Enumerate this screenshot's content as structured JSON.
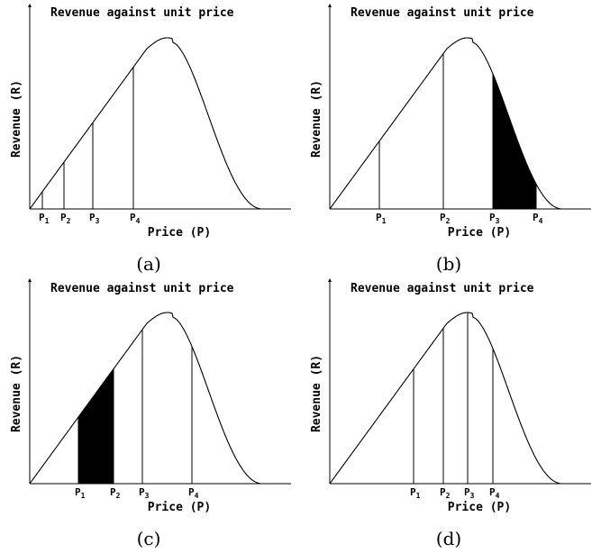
{
  "panels": [
    {
      "title": "Revenue against unit price",
      "xlabel": "Price (P)",
      "ylabel": "Revenue (R)",
      "caption": "(a)",
      "markers": [
        {
          "letter": "P",
          "sub": "1"
        },
        {
          "letter": "P",
          "sub": "2"
        },
        {
          "letter": "P",
          "sub": "3"
        },
        {
          "letter": "P",
          "sub": "4"
        }
      ],
      "shaded": false
    },
    {
      "title": "Revenue against unit price",
      "xlabel": "Price (P)",
      "ylabel": "Revenue (R)",
      "caption": "(b)",
      "markers": [
        {
          "letter": "P",
          "sub": "1"
        },
        {
          "letter": "P",
          "sub": "2"
        },
        {
          "letter": "P",
          "sub": "3"
        },
        {
          "letter": "P",
          "sub": "4"
        }
      ],
      "shaded": true,
      "shaded_between": [
        3,
        4
      ]
    },
    {
      "title": "Revenue against unit price",
      "xlabel": "Price (P)",
      "ylabel": "Revenue (R)",
      "caption": "(c)",
      "markers": [
        {
          "letter": "P",
          "sub": "1"
        },
        {
          "letter": "P",
          "sub": "2"
        },
        {
          "letter": "P",
          "sub": "3"
        },
        {
          "letter": "P",
          "sub": "4"
        }
      ],
      "shaded": true,
      "shaded_between": [
        1,
        2
      ]
    },
    {
      "title": "Revenue against unit price",
      "xlabel": "Price (P)",
      "ylabel": "Revenue (R)",
      "caption": "(d)",
      "markers": [
        {
          "letter": "P",
          "sub": "1"
        },
        {
          "letter": "P",
          "sub": "2"
        },
        {
          "letter": "P",
          "sub": "3"
        },
        {
          "letter": "P",
          "sub": "4"
        }
      ],
      "shaded": false
    }
  ]
}
